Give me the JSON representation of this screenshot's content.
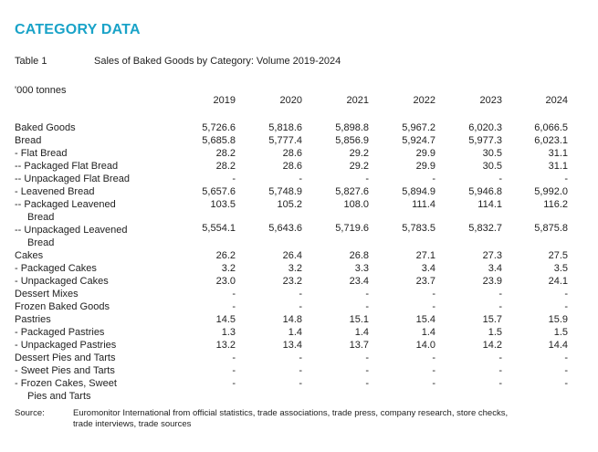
{
  "heading": "CATEGORY DATA",
  "table_label": "Table 1",
  "table_title": "Sales of Baked Goods by Category: Volume 2019-2024",
  "unit": "'000 tonnes",
  "years": [
    "2019",
    "2020",
    "2021",
    "2022",
    "2023",
    "2024"
  ],
  "rows": [
    {
      "label": [
        "Baked Goods"
      ],
      "values": [
        "5,726.6",
        "5,818.6",
        "5,898.8",
        "5,967.2",
        "6,020.3",
        "6,066.5"
      ]
    },
    {
      "label": [
        "Bread"
      ],
      "values": [
        "5,685.8",
        "5,777.4",
        "5,856.9",
        "5,924.7",
        "5,977.3",
        "6,023.1"
      ]
    },
    {
      "label": [
        "- Flat Bread"
      ],
      "values": [
        "28.2",
        "28.6",
        "29.2",
        "29.9",
        "30.5",
        "31.1"
      ]
    },
    {
      "label": [
        "-- Packaged Flat Bread"
      ],
      "values": [
        "28.2",
        "28.6",
        "29.2",
        "29.9",
        "30.5",
        "31.1"
      ]
    },
    {
      "label": [
        "-- Unpackaged Flat Bread"
      ],
      "values": [
        "-",
        "-",
        "-",
        "-",
        "-",
        "-"
      ]
    },
    {
      "label": [
        "- Leavened Bread"
      ],
      "values": [
        "5,657.6",
        "5,748.9",
        "5,827.6",
        "5,894.9",
        "5,946.8",
        "5,992.0"
      ]
    },
    {
      "label": [
        "-- Packaged Leavened",
        "Bread"
      ],
      "values": [
        "103.5",
        "105.2",
        "108.0",
        "111.4",
        "114.1",
        "116.2"
      ]
    },
    {
      "label": [
        "-- Unpackaged Leavened",
        "Bread"
      ],
      "values": [
        "5,554.1",
        "5,643.6",
        "5,719.6",
        "5,783.5",
        "5,832.7",
        "5,875.8"
      ]
    },
    {
      "label": [
        "Cakes"
      ],
      "values": [
        "26.2",
        "26.4",
        "26.8",
        "27.1",
        "27.3",
        "27.5"
      ]
    },
    {
      "label": [
        "- Packaged Cakes"
      ],
      "values": [
        "3.2",
        "3.2",
        "3.3",
        "3.4",
        "3.4",
        "3.5"
      ]
    },
    {
      "label": [
        "- Unpackaged Cakes"
      ],
      "values": [
        "23.0",
        "23.2",
        "23.4",
        "23.7",
        "23.9",
        "24.1"
      ]
    },
    {
      "label": [
        "Dessert Mixes"
      ],
      "values": [
        "-",
        "-",
        "-",
        "-",
        "-",
        "-"
      ]
    },
    {
      "label": [
        "Frozen Baked Goods"
      ],
      "values": [
        "-",
        "-",
        "-",
        "-",
        "-",
        "-"
      ]
    },
    {
      "label": [
        "Pastries"
      ],
      "values": [
        "14.5",
        "14.8",
        "15.1",
        "15.4",
        "15.7",
        "15.9"
      ]
    },
    {
      "label": [
        "- Packaged Pastries"
      ],
      "values": [
        "1.3",
        "1.4",
        "1.4",
        "1.4",
        "1.5",
        "1.5"
      ]
    },
    {
      "label": [
        "- Unpackaged Pastries"
      ],
      "values": [
        "13.2",
        "13.4",
        "13.7",
        "14.0",
        "14.2",
        "14.4"
      ]
    },
    {
      "label": [
        "Dessert Pies and Tarts"
      ],
      "values": [
        "-",
        "-",
        "-",
        "-",
        "-",
        "-"
      ]
    },
    {
      "label": [
        "- Sweet Pies and Tarts"
      ],
      "values": [
        "-",
        "-",
        "-",
        "-",
        "-",
        "-"
      ]
    },
    {
      "label": [
        "- Frozen Cakes, Sweet",
        "Pies and Tarts"
      ],
      "values": [
        "-",
        "-",
        "-",
        "-",
        "-",
        "-"
      ]
    }
  ],
  "source": {
    "label": "Source:",
    "text": "Euromonitor International from official statistics, trade associations, trade press, company research, store checks, trade interviews, trade sources"
  }
}
